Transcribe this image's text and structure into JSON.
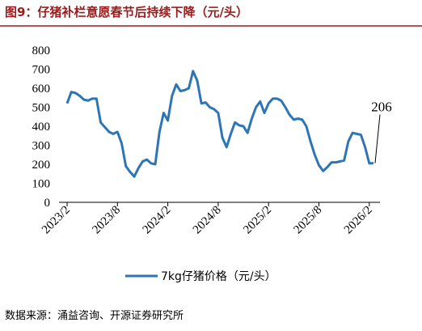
{
  "chart_data": {
    "type": "line",
    "title": "图9：仔猪补栏意愿春节后持续下降（元/头）",
    "source": "数据来源：涌益咨询、开源证券研究所",
    "categories": [
      "2023/2",
      null,
      null,
      null,
      null,
      null,
      null,
      null,
      null,
      null,
      null,
      null,
      "2023/8",
      null,
      null,
      null,
      null,
      null,
      null,
      null,
      null,
      null,
      null,
      null,
      "2024/2",
      null,
      null,
      null,
      null,
      null,
      null,
      null,
      null,
      null,
      null,
      null,
      "2024/8",
      null,
      null,
      null,
      null,
      null,
      null,
      null,
      null,
      null,
      null,
      null,
      "2025/2",
      null,
      null,
      null,
      null,
      null,
      null,
      null,
      null,
      null,
      null,
      null,
      "2025/8",
      null,
      null,
      null,
      null,
      null,
      null,
      null,
      null,
      null,
      null,
      null,
      "2026/2",
      null
    ],
    "series": [
      {
        "name": "7kg仔猪价格（元/头）",
        "color": "#2e75b6",
        "values": [
          520,
          580,
          575,
          560,
          540,
          535,
          545,
          545,
          420,
          395,
          370,
          360,
          370,
          310,
          190,
          160,
          135,
          180,
          215,
          225,
          205,
          200,
          370,
          470,
          430,
          560,
          620,
          585,
          590,
          600,
          690,
          640,
          520,
          525,
          500,
          490,
          470,
          340,
          290,
          360,
          420,
          405,
          400,
          365,
          440,
          500,
          530,
          470,
          520,
          545,
          545,
          535,
          500,
          460,
          435,
          440,
          435,
          400,
          320,
          250,
          195,
          165,
          185,
          210,
          210,
          215,
          220,
          320,
          365,
          360,
          355,
          290,
          205,
          206
        ],
        "value_labels": [
          null,
          null,
          null,
          null,
          null,
          null,
          null,
          null,
          null,
          null,
          null,
          null,
          null,
          null,
          null,
          null,
          null,
          null,
          null,
          null,
          null,
          null,
          null,
          null,
          null,
          null,
          null,
          null,
          null,
          null,
          null,
          null,
          null,
          null,
          null,
          null,
          null,
          null,
          null,
          null,
          null,
          null,
          null,
          null,
          null,
          null,
          null,
          null,
          null,
          null,
          null,
          null,
          null,
          null,
          null,
          null,
          null,
          null,
          null,
          null,
          null,
          null,
          null,
          null,
          null,
          null,
          null,
          null,
          null,
          null,
          null,
          null,
          null,
          "206"
        ]
      }
    ],
    "ylim": [
      0,
      800
    ],
    "yticks": [
      0,
      100,
      200,
      300,
      400,
      500,
      600,
      700,
      800
    ],
    "grid": false
  }
}
